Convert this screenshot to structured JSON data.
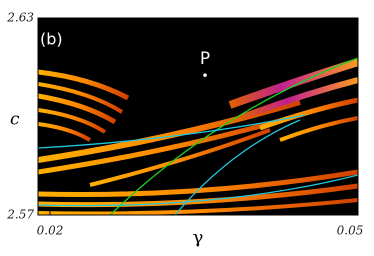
{
  "chart_data": {
    "type": "scatter",
    "panel_label": "(b)",
    "xlabel": "γ",
    "ylabel": "c",
    "points": [
      {
        "label": "P",
        "x": 0.0355,
        "y": 2.6126
      }
    ],
    "point_color": "#ffffff",
    "xlim": [
      0.0188,
      0.0508
    ],
    "ylim": [
      2.57,
      2.63
    ],
    "xticks": [
      0.02,
      0.05
    ],
    "yticks": [
      2.57,
      2.63
    ]
  }
}
